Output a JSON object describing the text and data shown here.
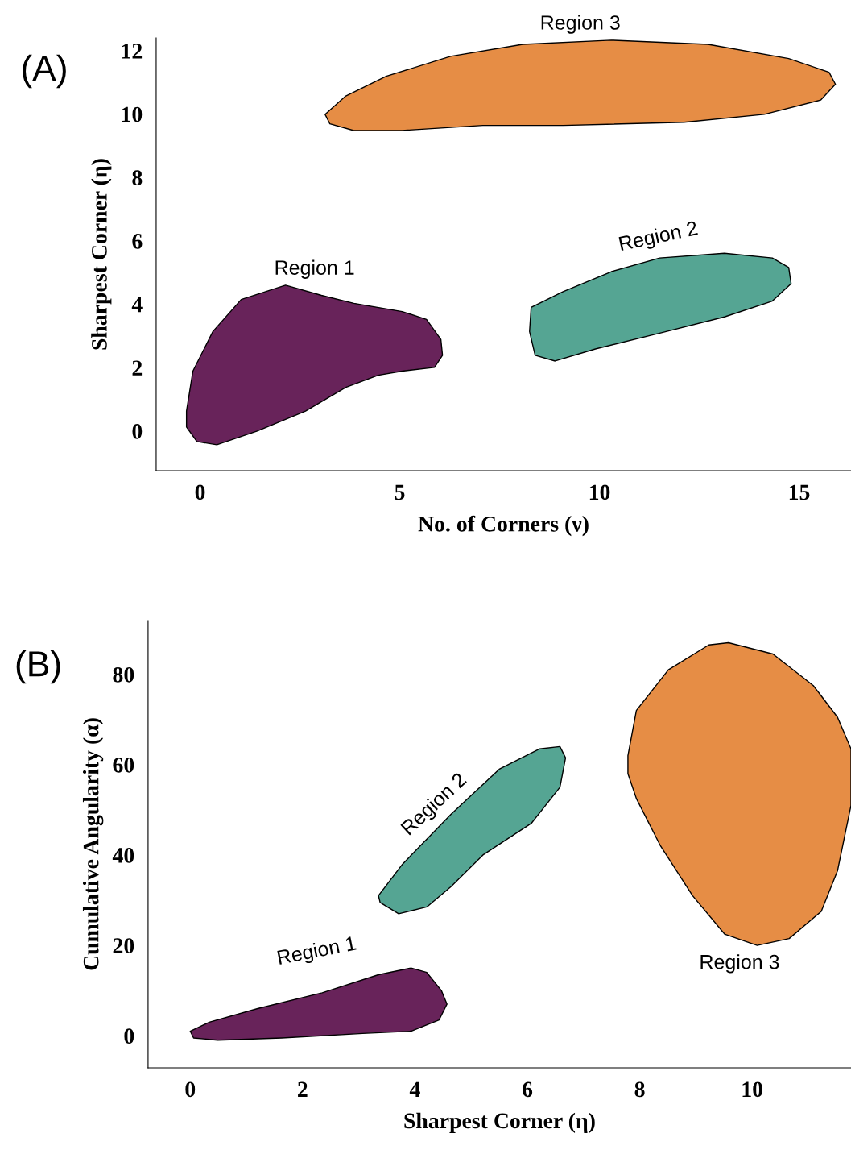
{
  "chart_data": [
    {
      "type": "area",
      "title": "(A)",
      "xlabel": "No. of Corners (ν)",
      "ylabel": "Sharpest Corner (η)",
      "xlim": [
        -1.1,
        16.3
      ],
      "ylim": [
        -1.25,
        12.4
      ],
      "xticks": [
        0,
        5,
        10,
        15
      ],
      "yticks": [
        0,
        2,
        4,
        6,
        8,
        10,
        12
      ],
      "grid": false,
      "legend": false,
      "series": [
        {
          "name": "Region 1",
          "color": "#68235a",
          "x": [
            -0.34,
            -0.18,
            0.32,
            1.03,
            2.14,
            3.04,
            3.85,
            5.06,
            5.67,
            6.03,
            6.07,
            5.87,
            5.06,
            4.46,
            3.65,
            2.64,
            1.43,
            0.42,
            -0.08,
            -0.34
          ],
          "values": [
            0.63,
            1.89,
            3.14,
            4.15,
            4.6,
            4.28,
            4.03,
            3.77,
            3.52,
            2.89,
            2.39,
            2.01,
            1.89,
            1.76,
            1.38,
            0.63,
            0,
            -0.43,
            -0.33,
            0.13
          ]
        },
        {
          "name": "Region 2",
          "color": "#55a593",
          "x": [
            8.29,
            9.09,
            10.3,
            11.51,
            13.13,
            14.33,
            14.74,
            14.8,
            14.33,
            13.13,
            11.51,
            9.9,
            8.89,
            8.39,
            8.25
          ],
          "values": [
            3.9,
            4.4,
            5.03,
            5.46,
            5.61,
            5.46,
            5.16,
            4.65,
            4.1,
            3.6,
            3.09,
            2.59,
            2.21,
            2.39,
            3.14
          ]
        },
        {
          "name": "Region 3",
          "color": "#e68d45",
          "x": [
            3.13,
            3.65,
            4.66,
            6.27,
            8.08,
            10.3,
            12.72,
            14.74,
            15.75,
            15.91,
            15.54,
            14.13,
            12.12,
            9.09,
            7.08,
            5.06,
            3.85,
            3.25
          ],
          "values": [
            9.99,
            10.57,
            11.19,
            11.82,
            12.2,
            12.33,
            12.2,
            11.75,
            11.32,
            10.94,
            10.44,
            9.99,
            9.74,
            9.64,
            9.64,
            9.48,
            9.48,
            9.69
          ]
        }
      ]
    },
    {
      "type": "area",
      "title": "(B)",
      "xlabel": "Sharpest Corner (η)",
      "ylabel": "Cumulative Angularity (α)",
      "xlim": [
        -0.75,
        11.76
      ],
      "ylim": [
        -7.1,
        91.9
      ],
      "xticks": [
        0,
        2,
        4,
        6,
        8,
        10
      ],
      "yticks": [
        0,
        20,
        40,
        60,
        80
      ],
      "grid": false,
      "legend": false,
      "series": [
        {
          "name": "Region 1",
          "color": "#68235a",
          "x": [
            0,
            0.34,
            1.2,
            2.35,
            3.35,
            3.93,
            4.21,
            4.47,
            4.57,
            4.43,
            3.93,
            3.07,
            1.63,
            0.49,
            0.06
          ],
          "values": [
            1,
            3,
            6,
            9.5,
            13.5,
            15,
            14,
            10,
            7,
            3.5,
            1,
            0.5,
            -0.5,
            -1,
            -0.5
          ]
        },
        {
          "name": "Region 2",
          "color": "#55a593",
          "x": [
            3.35,
            3.78,
            4.64,
            5.5,
            6.22,
            6.58,
            6.68,
            6.58,
            6.07,
            5.21,
            4.64,
            4.21,
            3.71,
            3.38
          ],
          "values": [
            31,
            38,
            49,
            59,
            63.5,
            64,
            61.5,
            55,
            47,
            40,
            33,
            28.5,
            27,
            29.5
          ]
        },
        {
          "name": "Region 3",
          "color": "#e68d45",
          "x": [
            7.79,
            7.94,
            8.51,
            9.23,
            9.58,
            10.37,
            11.09,
            11.52,
            11.76,
            11.76,
            11.52,
            11.23,
            10.66,
            10.09,
            9.51,
            8.94,
            8.37,
            7.94,
            7.79
          ],
          "values": [
            62,
            72,
            81,
            86.5,
            87,
            84.5,
            77.5,
            70.5,
            63.5,
            51,
            36.5,
            27.5,
            21.5,
            20,
            22.5,
            31,
            42,
            52.5,
            58
          ]
        }
      ]
    }
  ]
}
